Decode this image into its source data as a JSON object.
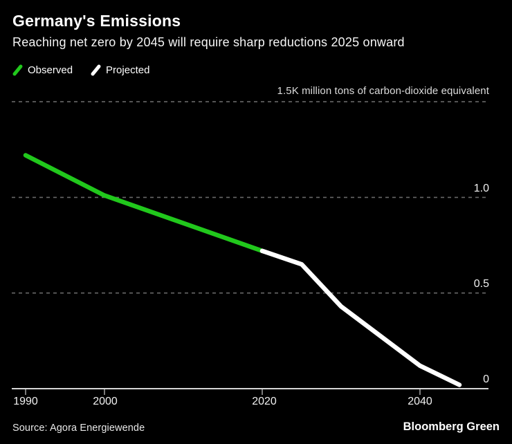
{
  "header": {
    "title": "Germany's Emissions",
    "subtitle": "Reaching net zero by 2045 will require sharp reductions 2025 onward"
  },
  "legend": {
    "observed_label": "Observed",
    "projected_label": "Projected"
  },
  "axis": {
    "unit_label": "1.5K million tons of carbon-dioxide equivalent",
    "y_tick_labels": [
      "1.0",
      "0.5",
      "0"
    ],
    "x_tick_labels": [
      "1990",
      "2000",
      "2020",
      "2040"
    ]
  },
  "footer": {
    "source": "Source: Agora Energiewende",
    "brand": "Bloomberg Green"
  },
  "colors": {
    "background": "#000000",
    "observed": "#21c81c",
    "projected": "#ffffff",
    "gridline": "#686868",
    "baseline": "#d6d6d6",
    "tick": "#a6a6a6"
  },
  "chart_data": {
    "type": "line",
    "title": "Germany's Emissions",
    "subtitle": "Reaching net zero by 2045 will require sharp reductions 2025 onward",
    "unit_label": "1.5K million tons of carbon-dioxide equivalent",
    "ylabel": "million tons of carbon-dioxide equivalent (thousands)",
    "xlabel": "",
    "xlim": [
      1990,
      2045
    ],
    "ylim": [
      0,
      1.5
    ],
    "x_ticks": [
      1990,
      2000,
      2020,
      2040
    ],
    "y_gridlines_dashed": [
      1.5,
      1.0,
      0.5
    ],
    "y_baseline": 0,
    "grid": "horizontal-dashed",
    "legend_position": "top-left",
    "source": "Agora Energiewende",
    "series": [
      {
        "name": "Observed",
        "color": "#21c81c",
        "x": [
          1990,
          2000,
          2020
        ],
        "values": [
          1.22,
          1.01,
          0.72
        ]
      },
      {
        "name": "Projected",
        "color": "#ffffff",
        "x": [
          2020,
          2025,
          2030,
          2040,
          2045
        ],
        "values": [
          0.72,
          0.65,
          0.43,
          0.12,
          0.02
        ]
      }
    ]
  }
}
